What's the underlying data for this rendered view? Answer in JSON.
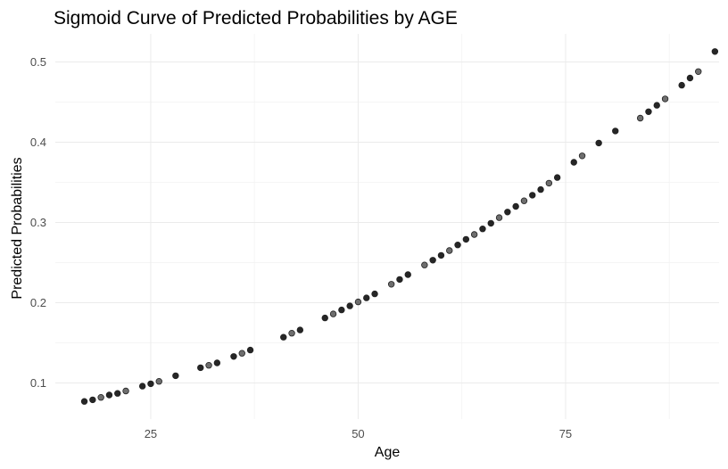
{
  "chart_data": {
    "type": "scatter",
    "title": "Sigmoid Curve of Predicted Probabilities by AGE",
    "xlabel": "Age",
    "ylabel": "Predicted Probabilities",
    "xlim": [
      13.5,
      93.5
    ],
    "ylim": [
      0.055,
      0.535
    ],
    "x_ticks": [
      25,
      50,
      75
    ],
    "x_minor_ticks": [
      37.5,
      62.5,
      87.5
    ],
    "y_ticks": [
      0.1,
      0.2,
      0.3,
      0.4,
      0.5
    ],
    "y_minor_ticks": [
      0.15,
      0.25,
      0.35,
      0.45
    ],
    "grid": true,
    "point_colors": [
      "#000000",
      "#555555"
    ],
    "x": [
      17,
      18,
      19,
      20,
      21,
      22,
      24,
      25,
      26,
      28,
      31,
      32,
      33,
      35,
      36,
      37,
      41,
      42,
      43,
      46,
      47,
      48,
      49,
      50,
      51,
      52,
      54,
      55,
      56,
      58,
      59,
      60,
      61,
      62,
      63,
      64,
      65,
      66,
      67,
      68,
      69,
      70,
      71,
      72,
      73,
      74,
      76,
      77,
      79,
      81,
      84,
      85,
      86,
      87,
      89,
      90,
      91,
      93
    ],
    "y": [
      0.077,
      0.079,
      0.082,
      0.085,
      0.087,
      0.09,
      0.096,
      0.099,
      0.102,
      0.109,
      0.119,
      0.122,
      0.125,
      0.133,
      0.137,
      0.141,
      0.157,
      0.162,
      0.166,
      0.181,
      0.186,
      0.191,
      0.196,
      0.201,
      0.206,
      0.211,
      0.223,
      0.229,
      0.235,
      0.247,
      0.253,
      0.259,
      0.265,
      0.272,
      0.279,
      0.285,
      0.292,
      0.299,
      0.306,
      0.313,
      0.32,
      0.327,
      0.334,
      0.341,
      0.349,
      0.356,
      0.375,
      0.383,
      0.399,
      0.414,
      0.43,
      0.438,
      0.446,
      0.454,
      0.471,
      0.48,
      0.488,
      0.513
    ]
  }
}
